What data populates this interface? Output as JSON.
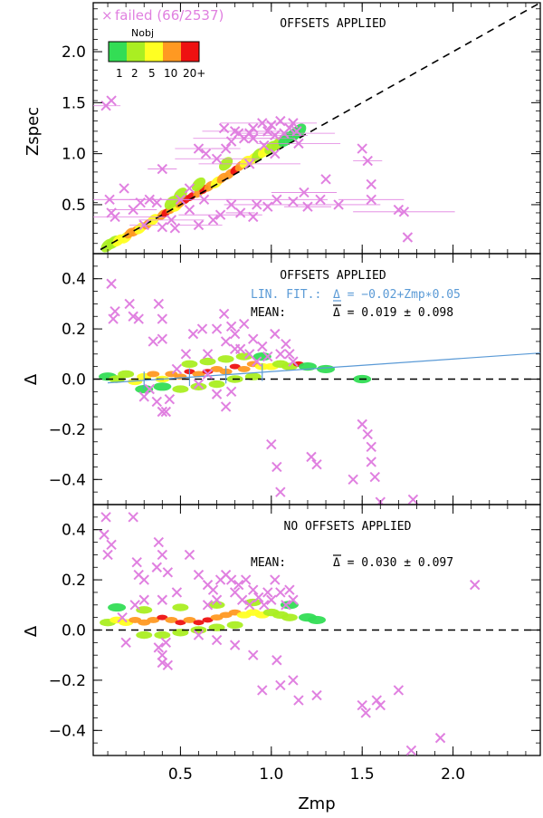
{
  "figure": {
    "colors": {
      "failed": "#e080e0",
      "fit": "#5a9ad6",
      "frame": "#000000"
    },
    "density_colors": [
      "#33dd55",
      "#aaee22",
      "#ffff22",
      "#ff9922",
      "#ee1111"
    ]
  },
  "chart_data": [
    {
      "type": "scatter",
      "panel": "top",
      "title": "OFFSETS APPLIED",
      "xlabel": "",
      "ylabel": "Zspec",
      "xlim": [
        0.02,
        2.48
      ],
      "ylim": [
        0.02,
        2.48
      ],
      "yticks": [
        "0.5",
        "1.0",
        "1.5",
        "2.0"
      ],
      "failed_label": "failed (66/2537)",
      "colorbar": {
        "title": "Nobj",
        "labels": [
          "1",
          "2",
          "5",
          "10",
          "20+"
        ]
      },
      "reference_line": "Zspec = Zmp (dashed)",
      "failed_points": [
        [
          0.09,
          1.47
        ],
        [
          0.12,
          1.52
        ],
        [
          0.11,
          0.55
        ],
        [
          0.12,
          0.42
        ],
        [
          0.14,
          0.38
        ],
        [
          0.19,
          0.66
        ],
        [
          0.24,
          0.45
        ],
        [
          0.28,
          0.52
        ],
        [
          0.33,
          0.55
        ],
        [
          0.37,
          0.52
        ],
        [
          0.4,
          0.85
        ],
        [
          0.4,
          0.28
        ],
        [
          0.45,
          0.35
        ],
        [
          0.47,
          0.27
        ],
        [
          0.5,
          0.55
        ],
        [
          0.55,
          0.66
        ],
        [
          0.6,
          1.05
        ],
        [
          0.64,
          1.0
        ],
        [
          0.7,
          0.95
        ],
        [
          0.74,
          1.25
        ],
        [
          0.75,
          1.05
        ],
        [
          0.78,
          1.12
        ],
        [
          0.8,
          1.22
        ],
        [
          0.82,
          1.2
        ],
        [
          0.85,
          1.15
        ],
        [
          0.88,
          1.2
        ],
        [
          0.9,
          1.15
        ],
        [
          0.9,
          1.25
        ],
        [
          0.95,
          1.3
        ],
        [
          0.96,
          1.08
        ],
        [
          0.98,
          1.22
        ],
        [
          1.0,
          1.28
        ],
        [
          1.02,
          1.18
        ],
        [
          1.05,
          1.32
        ],
        [
          1.07,
          1.2
        ],
        [
          1.1,
          1.25
        ],
        [
          1.12,
          1.3
        ],
        [
          1.14,
          1.22
        ],
        [
          1.15,
          1.1
        ],
        [
          0.78,
          0.5
        ],
        [
          0.83,
          0.42
        ],
        [
          0.9,
          0.38
        ],
        [
          0.92,
          0.5
        ],
        [
          0.98,
          0.48
        ],
        [
          1.03,
          0.55
        ],
        [
          1.12,
          0.53
        ],
        [
          1.2,
          0.48
        ],
        [
          1.27,
          0.55
        ],
        [
          1.37,
          0.5
        ],
        [
          1.5,
          1.05
        ],
        [
          1.53,
          0.93
        ],
        [
          1.55,
          0.7
        ],
        [
          1.55,
          0.55
        ],
        [
          1.7,
          0.45
        ],
        [
          1.73,
          0.43
        ],
        [
          1.75,
          0.18
        ],
        [
          0.6,
          0.3
        ],
        [
          0.68,
          0.35
        ],
        [
          0.72,
          0.4
        ],
        [
          0.55,
          0.45
        ],
        [
          0.3,
          0.3
        ],
        [
          0.63,
          0.55
        ],
        [
          1.18,
          0.62
        ],
        [
          1.3,
          0.75
        ],
        [
          0.88,
          0.9
        ],
        [
          1.02,
          1.0
        ]
      ],
      "density_points": [
        [
          0.1,
          0.1,
          2
        ],
        [
          0.13,
          0.13,
          2
        ],
        [
          0.16,
          0.15,
          3
        ],
        [
          0.2,
          0.18,
          3
        ],
        [
          0.22,
          0.22,
          4
        ],
        [
          0.25,
          0.24,
          4
        ],
        [
          0.28,
          0.27,
          3
        ],
        [
          0.32,
          0.31,
          4
        ],
        [
          0.35,
          0.35,
          3
        ],
        [
          0.4,
          0.4,
          4
        ],
        [
          0.42,
          0.42,
          5
        ],
        [
          0.45,
          0.46,
          4
        ],
        [
          0.48,
          0.49,
          3
        ],
        [
          0.5,
          0.52,
          4
        ],
        [
          0.53,
          0.55,
          5
        ],
        [
          0.56,
          0.58,
          5
        ],
        [
          0.6,
          0.62,
          4
        ],
        [
          0.63,
          0.65,
          5
        ],
        [
          0.66,
          0.68,
          4
        ],
        [
          0.7,
          0.72,
          3
        ],
        [
          0.73,
          0.76,
          4
        ],
        [
          0.77,
          0.8,
          4
        ],
        [
          0.8,
          0.84,
          5
        ],
        [
          0.83,
          0.88,
          4
        ],
        [
          0.86,
          0.92,
          3
        ],
        [
          0.9,
          0.95,
          3
        ],
        [
          0.93,
          0.99,
          2
        ],
        [
          0.96,
          1.02,
          3
        ],
        [
          1.0,
          1.06,
          2
        ],
        [
          1.04,
          1.1,
          2
        ],
        [
          1.08,
          1.14,
          1
        ],
        [
          1.12,
          1.18,
          1
        ],
        [
          1.15,
          1.22,
          1
        ],
        [
          0.5,
          0.6,
          2
        ],
        [
          0.6,
          0.7,
          2
        ],
        [
          0.45,
          0.52,
          2
        ],
        [
          0.75,
          0.9,
          2
        ]
      ]
    },
    {
      "type": "scatter",
      "panel": "middle",
      "title": "OFFSETS APPLIED",
      "fit_label": "LIN. FIT.:",
      "fit_equation": "Δ = −0.02+Zmp∗0.05",
      "mean_label": "MEAN:",
      "mean_value": "Δ = 0.019 ± 0.098",
      "xlabel": "",
      "ylabel": "Δ",
      "xlim": [
        0.02,
        2.48
      ],
      "ylim": [
        -0.5,
        0.5
      ],
      "yticks": [
        "−0.4",
        "−0.2",
        "0.0",
        "0.2",
        "0.4"
      ],
      "fit": {
        "intercept": -0.02,
        "slope": 0.05
      },
      "failed_points": [
        [
          0.12,
          0.38
        ],
        [
          0.14,
          0.27
        ],
        [
          0.13,
          0.24
        ],
        [
          0.22,
          0.3
        ],
        [
          0.24,
          0.25
        ],
        [
          0.27,
          0.24
        ],
        [
          0.38,
          0.3
        ],
        [
          0.4,
          0.24
        ],
        [
          0.35,
          0.15
        ],
        [
          0.4,
          0.16
        ],
        [
          0.3,
          -0.07
        ],
        [
          0.33,
          -0.04
        ],
        [
          0.37,
          -0.09
        ],
        [
          0.4,
          -0.13
        ],
        [
          0.42,
          -0.13
        ],
        [
          0.44,
          -0.08
        ],
        [
          0.48,
          0.04
        ],
        [
          0.53,
          0.1
        ],
        [
          0.57,
          0.18
        ],
        [
          0.62,
          0.2
        ],
        [
          0.65,
          0.1
        ],
        [
          0.7,
          0.2
        ],
        [
          0.74,
          0.26
        ],
        [
          0.75,
          0.15
        ],
        [
          0.78,
          0.21
        ],
        [
          0.8,
          0.18
        ],
        [
          0.83,
          0.12
        ],
        [
          0.85,
          0.22
        ],
        [
          0.88,
          0.1
        ],
        [
          0.9,
          0.16
        ],
        [
          0.92,
          0.07
        ],
        [
          0.95,
          0.13
        ],
        [
          0.98,
          0.09
        ],
        [
          1.02,
          0.18
        ],
        [
          1.05,
          0.1
        ],
        [
          1.08,
          0.14
        ],
        [
          1.1,
          0.1
        ],
        [
          1.12,
          0.07
        ],
        [
          0.7,
          -0.06
        ],
        [
          0.75,
          -0.11
        ],
        [
          0.78,
          -0.05
        ],
        [
          0.8,
          0.12
        ],
        [
          1.0,
          -0.26
        ],
        [
          1.03,
          -0.35
        ],
        [
          1.05,
          -0.45
        ],
        [
          1.22,
          -0.31
        ],
        [
          1.25,
          -0.34
        ],
        [
          1.45,
          -0.4
        ],
        [
          1.5,
          -0.18
        ],
        [
          1.53,
          -0.22
        ],
        [
          1.55,
          -0.27
        ],
        [
          1.55,
          -0.33
        ],
        [
          1.57,
          -0.39
        ],
        [
          1.6,
          -0.49
        ],
        [
          1.78,
          -0.48
        ],
        [
          0.6,
          -0.02
        ],
        [
          0.65,
          0.02
        ]
      ],
      "density_points": [
        [
          0.1,
          0.01,
          1
        ],
        [
          0.15,
          0.0,
          2
        ],
        [
          0.2,
          0.02,
          2
        ],
        [
          0.25,
          -0.01,
          3
        ],
        [
          0.3,
          0.01,
          3
        ],
        [
          0.35,
          0.02,
          4
        ],
        [
          0.4,
          0.0,
          3
        ],
        [
          0.45,
          0.02,
          4
        ],
        [
          0.5,
          0.01,
          4
        ],
        [
          0.55,
          0.03,
          5
        ],
        [
          0.6,
          0.02,
          4
        ],
        [
          0.65,
          0.03,
          5
        ],
        [
          0.7,
          0.04,
          4
        ],
        [
          0.75,
          0.03,
          4
        ],
        [
          0.8,
          0.05,
          5
        ],
        [
          0.85,
          0.04,
          4
        ],
        [
          0.9,
          0.06,
          4
        ],
        [
          0.95,
          0.05,
          3
        ],
        [
          1.0,
          0.05,
          3
        ],
        [
          1.05,
          0.06,
          2
        ],
        [
          1.1,
          0.05,
          2
        ],
        [
          1.15,
          0.06,
          5
        ],
        [
          1.2,
          0.05,
          1
        ],
        [
          1.3,
          0.04,
          1
        ],
        [
          0.5,
          -0.04,
          2
        ],
        [
          0.6,
          -0.03,
          2
        ],
        [
          0.7,
          -0.02,
          2
        ],
        [
          0.8,
          0.0,
          2
        ],
        [
          0.9,
          0.01,
          2
        ],
        [
          0.4,
          -0.03,
          1
        ],
        [
          0.3,
          -0.04,
          1
        ],
        [
          0.55,
          0.06,
          2
        ],
        [
          0.65,
          0.07,
          2
        ],
        [
          0.75,
          0.08,
          2
        ],
        [
          0.85,
          0.09,
          2
        ],
        [
          0.95,
          0.09,
          1
        ],
        [
          1.5,
          0.0,
          1
        ]
      ]
    },
    {
      "type": "scatter",
      "panel": "bottom",
      "title": "NO OFFSETS APPLIED",
      "mean_label": "MEAN:",
      "mean_value": "Δ = 0.030 ± 0.097",
      "xlabel": "Zmp",
      "ylabel": "Δ",
      "xlim": [
        0.02,
        2.48
      ],
      "ylim": [
        -0.5,
        0.5
      ],
      "xticks": [
        "0.5",
        "1.0",
        "1.5",
        "2.0"
      ],
      "yticks": [
        "−0.4",
        "−0.2",
        "0.0",
        "0.2",
        "0.4"
      ],
      "failed_points": [
        [
          0.09,
          0.45
        ],
        [
          0.08,
          0.38
        ],
        [
          0.1,
          0.3
        ],
        [
          0.12,
          0.34
        ],
        [
          0.24,
          0.45
        ],
        [
          0.26,
          0.27
        ],
        [
          0.27,
          0.22
        ],
        [
          0.3,
          0.12
        ],
        [
          0.25,
          0.1
        ],
        [
          0.3,
          0.2
        ],
        [
          0.38,
          0.35
        ],
        [
          0.4,
          0.3
        ],
        [
          0.37,
          0.25
        ],
        [
          0.43,
          0.23
        ],
        [
          0.4,
          0.12
        ],
        [
          0.48,
          0.15
        ],
        [
          0.55,
          0.3
        ],
        [
          0.6,
          0.22
        ],
        [
          0.65,
          0.18
        ],
        [
          0.68,
          0.16
        ],
        [
          0.72,
          0.2
        ],
        [
          0.75,
          0.22
        ],
        [
          0.78,
          0.2
        ],
        [
          0.8,
          0.15
        ],
        [
          0.82,
          0.18
        ],
        [
          0.84,
          0.12
        ],
        [
          0.86,
          0.2
        ],
        [
          0.88,
          0.1
        ],
        [
          0.9,
          0.16
        ],
        [
          0.93,
          0.13
        ],
        [
          0.96,
          0.1
        ],
        [
          0.98,
          0.15
        ],
        [
          1.0,
          0.12
        ],
        [
          1.02,
          0.2
        ],
        [
          1.05,
          0.15
        ],
        [
          1.08,
          0.1
        ],
        [
          1.1,
          0.16
        ],
        [
          1.12,
          0.12
        ],
        [
          0.38,
          -0.07
        ],
        [
          0.4,
          -0.1
        ],
        [
          0.42,
          -0.05
        ],
        [
          0.43,
          -0.14
        ],
        [
          0.4,
          -0.13
        ],
        [
          0.6,
          -0.02
        ],
        [
          0.7,
          -0.04
        ],
        [
          0.8,
          -0.06
        ],
        [
          0.9,
          -0.1
        ],
        [
          1.03,
          -0.12
        ],
        [
          1.05,
          -0.22
        ],
        [
          1.12,
          -0.2
        ],
        [
          1.15,
          -0.28
        ],
        [
          1.25,
          -0.26
        ],
        [
          1.5,
          -0.3
        ],
        [
          1.52,
          -0.33
        ],
        [
          1.58,
          -0.28
        ],
        [
          1.6,
          -0.3
        ],
        [
          1.7,
          -0.24
        ],
        [
          1.77,
          -0.48
        ],
        [
          1.93,
          -0.43
        ],
        [
          2.12,
          0.18
        ],
        [
          0.95,
          -0.24
        ],
        [
          0.65,
          0.1
        ],
        [
          0.7,
          0.12
        ],
        [
          0.18,
          0.05
        ],
        [
          0.2,
          -0.05
        ]
      ],
      "density_points": [
        [
          0.1,
          0.03,
          2
        ],
        [
          0.15,
          0.04,
          3
        ],
        [
          0.2,
          0.03,
          3
        ],
        [
          0.25,
          0.04,
          4
        ],
        [
          0.3,
          0.03,
          4
        ],
        [
          0.35,
          0.04,
          4
        ],
        [
          0.4,
          0.05,
          5
        ],
        [
          0.45,
          0.04,
          4
        ],
        [
          0.5,
          0.03,
          5
        ],
        [
          0.55,
          0.04,
          4
        ],
        [
          0.6,
          0.03,
          5
        ],
        [
          0.65,
          0.04,
          5
        ],
        [
          0.7,
          0.05,
          4
        ],
        [
          0.75,
          0.06,
          4
        ],
        [
          0.8,
          0.07,
          4
        ],
        [
          0.85,
          0.06,
          3
        ],
        [
          0.9,
          0.07,
          3
        ],
        [
          0.95,
          0.06,
          3
        ],
        [
          1.0,
          0.07,
          2
        ],
        [
          1.05,
          0.06,
          2
        ],
        [
          1.1,
          0.05,
          2
        ],
        [
          1.2,
          0.05,
          1
        ],
        [
          1.25,
          0.04,
          1
        ],
        [
          0.3,
          -0.02,
          2
        ],
        [
          0.4,
          -0.02,
          2
        ],
        [
          0.5,
          -0.01,
          2
        ],
        [
          0.6,
          0.0,
          2
        ],
        [
          0.7,
          0.01,
          2
        ],
        [
          0.8,
          0.02,
          2
        ],
        [
          0.3,
          0.08,
          2
        ],
        [
          0.5,
          0.09,
          2
        ],
        [
          0.7,
          0.1,
          2
        ],
        [
          0.9,
          0.11,
          2
        ],
        [
          0.15,
          0.09,
          1
        ],
        [
          1.1,
          0.1,
          1
        ]
      ]
    }
  ]
}
